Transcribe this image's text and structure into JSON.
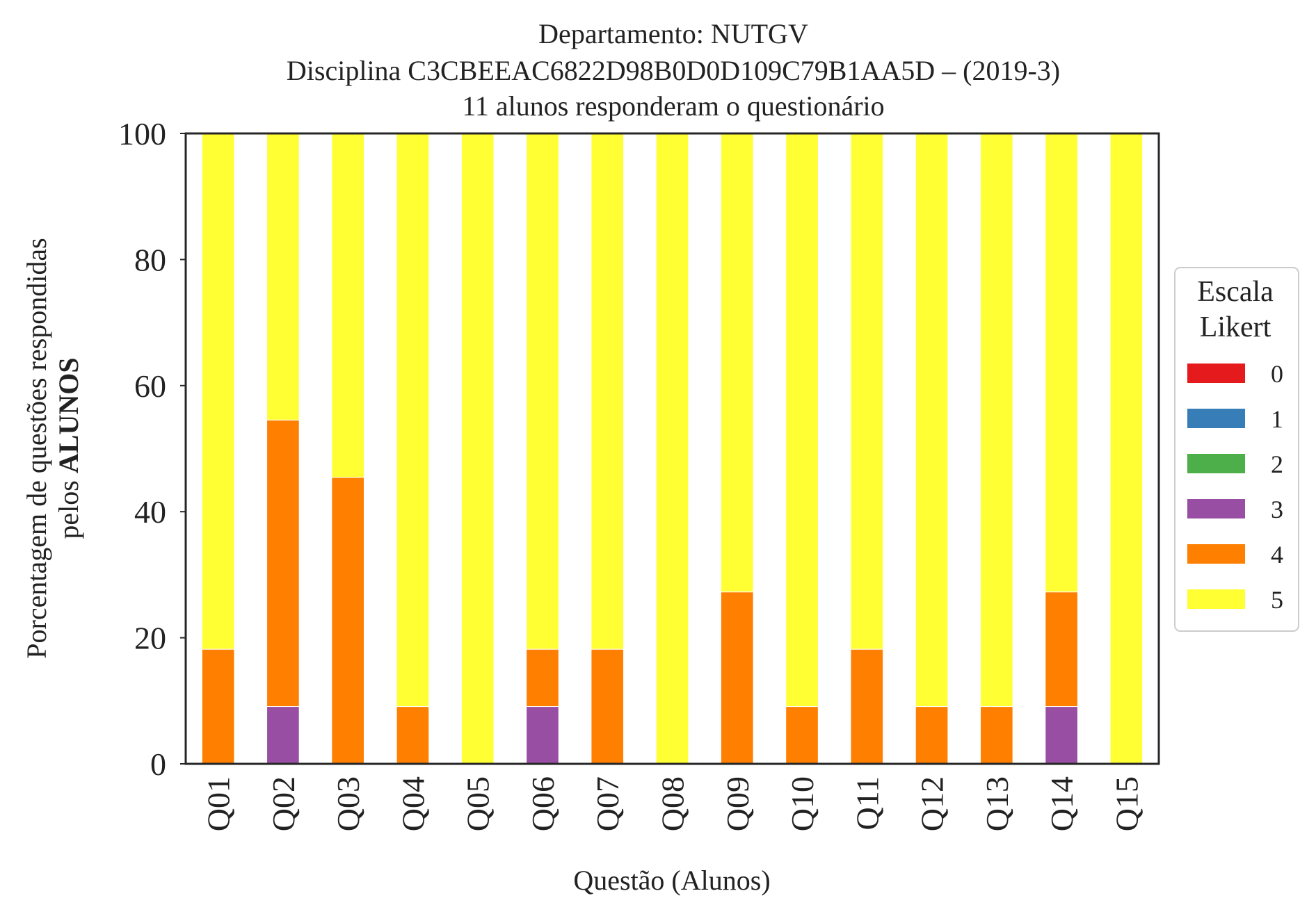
{
  "chart_data": {
    "type": "bar",
    "stacked": true,
    "title_lines": [
      "Departamento: NUTGV",
      "Disciplina C3CBEEAC6822D98B0D0D109C79B1AA5D – (2019-3)",
      "11 alunos responderam o questionário"
    ],
    "xlabel": "Questão (Alunos)",
    "ylabel_line1": "Porcentagem de questões respondidas",
    "ylabel_line2_prefix": "pelos ",
    "ylabel_line2_bold": "ALUNOS",
    "ylim": [
      0,
      100
    ],
    "yticks": [
      0,
      20,
      40,
      60,
      80,
      100
    ],
    "grid": false,
    "legend_position": "right",
    "legend_title_lines": [
      "Escala",
      "Likert"
    ],
    "categories": [
      "Q01",
      "Q02",
      "Q03",
      "Q04",
      "Q05",
      "Q06",
      "Q07",
      "Q08",
      "Q09",
      "Q10",
      "Q11",
      "Q12",
      "Q13",
      "Q14",
      "Q15"
    ],
    "series": [
      {
        "name": "0",
        "color": "#e41a1c",
        "values": [
          0,
          0,
          0,
          0,
          0,
          0,
          0,
          0,
          0,
          0,
          0,
          0,
          0,
          0,
          0
        ]
      },
      {
        "name": "1",
        "color": "#377eb8",
        "values": [
          0,
          0,
          0,
          0,
          0,
          0,
          0,
          0,
          0,
          0,
          0,
          0,
          0,
          0,
          0
        ]
      },
      {
        "name": "2",
        "color": "#4daf4a",
        "values": [
          0,
          0,
          0,
          0,
          0,
          0,
          0,
          0,
          0,
          0,
          0,
          0,
          0,
          0,
          0
        ]
      },
      {
        "name": "3",
        "color": "#984ea3",
        "values": [
          0,
          9.09,
          0,
          0,
          0,
          9.09,
          0,
          0,
          0,
          0,
          0,
          0,
          0,
          9.09,
          0
        ]
      },
      {
        "name": "4",
        "color": "#ff7f00",
        "values": [
          18.18,
          45.45,
          45.45,
          9.09,
          0,
          9.09,
          18.18,
          0,
          27.27,
          9.09,
          18.18,
          9.09,
          9.09,
          18.18,
          0
        ]
      },
      {
        "name": "5",
        "color": "#ffff33",
        "values": [
          81.82,
          45.45,
          54.55,
          90.91,
          100,
          81.82,
          81.82,
          100,
          72.73,
          90.91,
          81.82,
          90.91,
          90.91,
          72.73,
          100
        ]
      }
    ]
  }
}
